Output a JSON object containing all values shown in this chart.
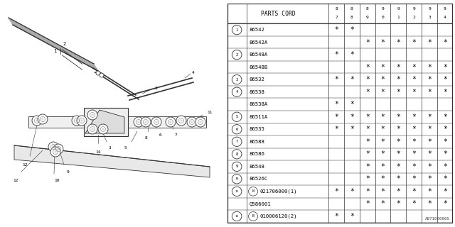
{
  "watermark": "A871000065",
  "table_header": [
    "PARTS CORD",
    "87",
    "88",
    "89",
    "90",
    "91",
    "92",
    "93",
    "94"
  ],
  "rows": [
    {
      "num": "1",
      "prefix": "",
      "part": "86542",
      "marks": [
        1,
        1,
        0,
        0,
        0,
        0,
        0,
        0
      ]
    },
    {
      "num": "",
      "prefix": "",
      "part": "86542A",
      "marks": [
        0,
        0,
        1,
        1,
        1,
        1,
        1,
        1
      ]
    },
    {
      "num": "2",
      "prefix": "",
      "part": "86548A",
      "marks": [
        1,
        1,
        0,
        0,
        0,
        0,
        0,
        0
      ]
    },
    {
      "num": "",
      "prefix": "",
      "part": "86548B",
      "marks": [
        0,
        0,
        1,
        1,
        1,
        1,
        1,
        1
      ]
    },
    {
      "num": "3",
      "prefix": "",
      "part": "86532",
      "marks": [
        1,
        1,
        1,
        1,
        1,
        1,
        1,
        1
      ]
    },
    {
      "num": "4",
      "prefix": "",
      "part": "86538",
      "marks": [
        0,
        0,
        1,
        1,
        1,
        1,
        1,
        1
      ]
    },
    {
      "num": "",
      "prefix": "",
      "part": "86538A",
      "marks": [
        1,
        1,
        0,
        0,
        0,
        0,
        0,
        0
      ]
    },
    {
      "num": "5",
      "prefix": "",
      "part": "86511A",
      "marks": [
        1,
        1,
        1,
        1,
        1,
        1,
        1,
        1
      ]
    },
    {
      "num": "6",
      "prefix": "",
      "part": "86535",
      "marks": [
        1,
        1,
        1,
        1,
        1,
        1,
        1,
        1
      ]
    },
    {
      "num": "7",
      "prefix": "",
      "part": "86588",
      "marks": [
        0,
        0,
        1,
        1,
        1,
        1,
        1,
        1
      ]
    },
    {
      "num": "8",
      "prefix": "",
      "part": "86586",
      "marks": [
        0,
        0,
        1,
        1,
        1,
        1,
        1,
        1
      ]
    },
    {
      "num": "9",
      "prefix": "",
      "part": "86548",
      "marks": [
        0,
        0,
        1,
        1,
        1,
        1,
        1,
        1
      ]
    },
    {
      "num": "10",
      "prefix": "",
      "part": "86526C",
      "marks": [
        0,
        0,
        1,
        1,
        1,
        1,
        1,
        1
      ]
    },
    {
      "num": "11",
      "prefix": "N",
      "part": "021706000(1)",
      "marks": [
        1,
        1,
        1,
        1,
        1,
        1,
        1,
        1
      ]
    },
    {
      "num": "",
      "prefix": "",
      "part": "Q586001",
      "marks": [
        0,
        0,
        1,
        1,
        1,
        1,
        1,
        1
      ]
    },
    {
      "num": "12",
      "prefix": "B",
      "part": "010006120(2)",
      "marks": [
        1,
        1,
        0,
        0,
        0,
        0,
        0,
        0
      ]
    }
  ],
  "bg_color": "#ffffff",
  "line_color": "#333333",
  "text_color": "#000000"
}
